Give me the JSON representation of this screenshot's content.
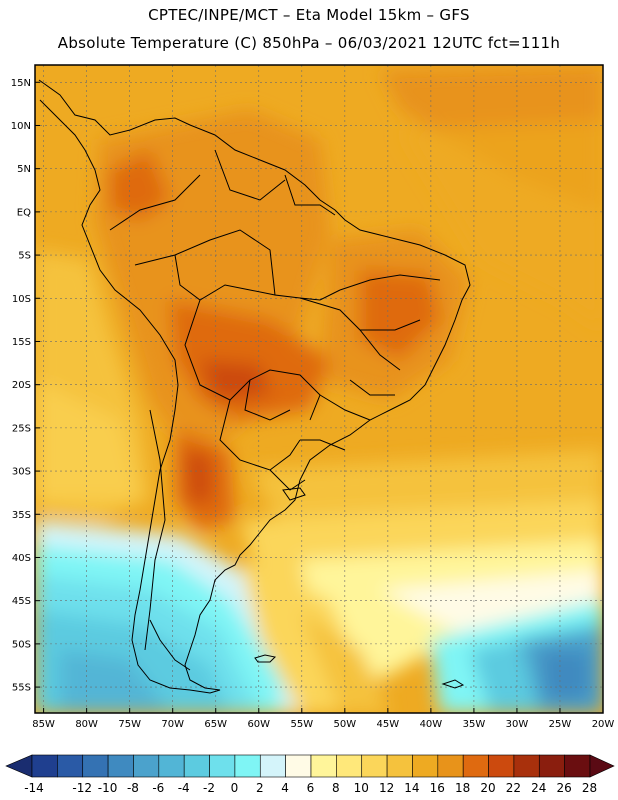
{
  "header": {
    "line1": "CPTEC/INPE/MCT –  Eta Model 15km – GFS",
    "line2": "Absolute Temperature (C) 850hPa – 06/03/2021 12UTC fct=111h"
  },
  "map": {
    "lat_labels": [
      "15N",
      "10N",
      "5N",
      "EQ",
      "5S",
      "10S",
      "15S",
      "20S",
      "25S",
      "30S",
      "35S",
      "40S",
      "45S",
      "50S",
      "55S"
    ],
    "lat_values": [
      15,
      10,
      5,
      0,
      -5,
      -10,
      -15,
      -20,
      -25,
      -30,
      -35,
      -40,
      -45,
      -50,
      -55
    ],
    "lon_labels": [
      "85W",
      "80W",
      "75W",
      "70W",
      "65W",
      "60W",
      "55W",
      "50W",
      "45W",
      "40W",
      "35W",
      "30W",
      "25W",
      "20W"
    ],
    "lon_values": [
      -85,
      -80,
      -75,
      -70,
      -65,
      -60,
      -55,
      -50,
      -45,
      -40,
      -35,
      -30,
      -25,
      -20
    ],
    "lon_range": [
      -86,
      -20
    ],
    "lat_range": [
      -58,
      17
    ],
    "grid": true
  },
  "colorbar": {
    "labels": [
      "-14",
      "-12",
      "-10",
      "-8",
      "-6",
      "-4",
      "-2",
      "0",
      "2",
      "4",
      "6",
      "8",
      "10",
      "12",
      "14",
      "16",
      "18",
      "20",
      "22",
      "24",
      "26",
      "28"
    ],
    "colors": [
      "#1f3f8f",
      "#2a5aa6",
      "#3472b3",
      "#3f8ac0",
      "#4ba2cc",
      "#52b5d6",
      "#5ccbe0",
      "#6ee0ec",
      "#7ff5f5",
      "#d4f4fa",
      "#fffbe6",
      "#fff59a",
      "#ffe87a",
      "#fbd65a",
      "#f5c23d",
      "#eeaa22",
      "#e8931a",
      "#df6a10",
      "#cc4a0e",
      "#a8300c",
      "#8a1e0e",
      "#6a0e10"
    ],
    "low_arrow_color": "#1a2d70",
    "high_arrow_color": "#5a0a14"
  }
}
